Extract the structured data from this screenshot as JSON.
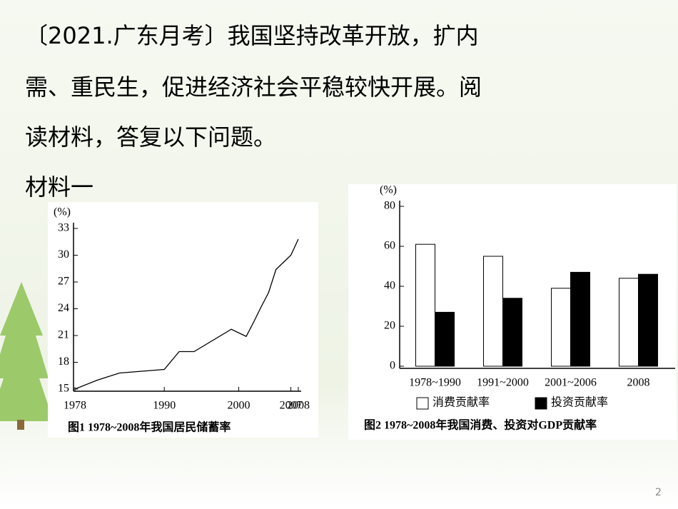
{
  "slide": {
    "paragraph_lines": [
      "〔2021.广东月考〕我国坚持改革开放，扩内",
      "需、重民生，促进经济社会平稳较快开展。阅",
      "读材料，答复以下问题。"
    ],
    "material_label": "材料一",
    "page_number": "2"
  },
  "chart_data": [
    {
      "type": "line",
      "y_label": "(%)",
      "caption": "图1  1978~2008年我国居民储蓄率",
      "x": [
        1978,
        1981,
        1984,
        1990,
        1992,
        1994,
        1999,
        2001,
        2002,
        2003,
        2004,
        2005,
        2006,
        2007,
        2008
      ],
      "values": [
        15,
        16,
        16.8,
        17.2,
        19.2,
        19.2,
        21.7,
        20.9,
        22.5,
        24.2,
        25.8,
        28.4,
        29.2,
        30,
        31.8
      ],
      "color": "#000000",
      "xlim": [
        1978,
        2008
      ],
      "xticks": [
        1978,
        1990,
        2000,
        2007,
        2008
      ],
      "ylim": [
        15,
        33
      ],
      "yticks": [
        15,
        18,
        21,
        24,
        27,
        30,
        33
      ]
    },
    {
      "type": "bar",
      "y_label": "(%)",
      "caption": "图2  1978~2008年我国消费、投资对GDP贡献率",
      "categories": [
        "1978~1990",
        "1991~2000",
        "2001~2006",
        "2008"
      ],
      "series": [
        {
          "name": "消费贡献率",
          "color": "#ffffff",
          "values": [
            61,
            55,
            39,
            44
          ]
        },
        {
          "name": "投资贡献率",
          "color": "#000000",
          "values": [
            27,
            34,
            47,
            46
          ]
        }
      ],
      "ylim": [
        0,
        80
      ],
      "yticks": [
        0,
        20,
        40,
        60,
        80
      ]
    }
  ]
}
